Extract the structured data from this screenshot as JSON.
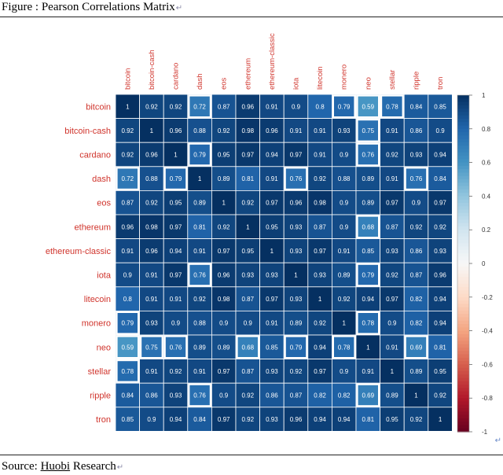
{
  "figure": {
    "title": "Figure : Pearson Correlations Matrix"
  },
  "source": {
    "prefix": "Source: ",
    "brand": "Huobi",
    "suffix": " Research"
  },
  "colors": {
    "label": "#d0342c",
    "positive_max": "#053061",
    "mid": "#f7f7f7",
    "negative_max": "#67001f",
    "cell_text": "#ffffff"
  },
  "chart_data": {
    "type": "heatmap",
    "title": "Pearson Correlations Matrix",
    "labels": [
      "bitcoin",
      "bitcoin-cash",
      "cardano",
      "dash",
      "eos",
      "ethereum",
      "ethereum-classic",
      "iota",
      "litecoin",
      "monero",
      "neo",
      "stellar",
      "ripple",
      "tron"
    ],
    "matrix": [
      [
        1,
        0.92,
        0.92,
        0.72,
        0.87,
        0.96,
        0.91,
        0.9,
        0.8,
        0.79,
        0.59,
        0.78,
        0.84,
        0.85
      ],
      [
        0.92,
        1,
        0.96,
        0.88,
        0.92,
        0.98,
        0.96,
        0.91,
        0.91,
        0.93,
        0.75,
        0.91,
        0.86,
        0.9
      ],
      [
        0.92,
        0.96,
        1,
        0.79,
        0.95,
        0.97,
        0.94,
        0.97,
        0.91,
        0.9,
        0.76,
        0.92,
        0.93,
        0.94
      ],
      [
        0.72,
        0.88,
        0.79,
        1,
        0.89,
        0.81,
        0.91,
        0.76,
        0.92,
        0.88,
        0.89,
        0.91,
        0.76,
        0.84
      ],
      [
        0.87,
        0.92,
        0.95,
        0.89,
        1,
        0.92,
        0.97,
        0.96,
        0.98,
        0.9,
        0.89,
        0.97,
        0.9,
        0.97
      ],
      [
        0.96,
        0.98,
        0.97,
        0.81,
        0.92,
        1,
        0.95,
        0.93,
        0.87,
        0.9,
        0.68,
        0.87,
        0.92,
        0.92
      ],
      [
        0.91,
        0.96,
        0.94,
        0.91,
        0.97,
        0.95,
        1,
        0.93,
        0.97,
        0.91,
        0.85,
        0.93,
        0.86,
        0.93
      ],
      [
        0.9,
        0.91,
        0.97,
        0.76,
        0.96,
        0.93,
        0.93,
        1,
        0.93,
        0.89,
        0.79,
        0.92,
        0.87,
        0.96
      ],
      [
        0.8,
        0.91,
        0.91,
        0.92,
        0.98,
        0.87,
        0.97,
        0.93,
        1,
        0.92,
        0.94,
        0.97,
        0.82,
        0.94
      ],
      [
        0.79,
        0.93,
        0.9,
        0.88,
        0.9,
        0.9,
        0.91,
        0.89,
        0.92,
        1,
        0.78,
        0.9,
        0.82,
        0.94
      ],
      [
        0.59,
        0.75,
        0.76,
        0.89,
        0.89,
        0.68,
        0.85,
        0.79,
        0.94,
        0.78,
        1,
        0.91,
        0.69,
        0.81
      ],
      [
        0.78,
        0.91,
        0.92,
        0.91,
        0.97,
        0.87,
        0.93,
        0.92,
        0.97,
        0.9,
        0.91,
        1,
        0.89,
        0.95
      ],
      [
        0.84,
        0.86,
        0.93,
        0.76,
        0.9,
        0.92,
        0.86,
        0.87,
        0.82,
        0.82,
        0.69,
        0.89,
        1,
        0.92
      ],
      [
        0.85,
        0.9,
        0.94,
        0.84,
        0.97,
        0.92,
        0.93,
        0.96,
        0.94,
        0.94,
        0.81,
        0.95,
        0.92,
        1
      ]
    ],
    "colorbar": {
      "range": [
        -1,
        1
      ],
      "ticks": [
        1,
        0.8,
        0.6,
        0.4,
        0.2,
        0,
        -0.2,
        -0.4,
        -0.6,
        -0.8,
        -1
      ]
    },
    "highlight_below": 0.8,
    "legend_position": "right",
    "grid": true
  }
}
